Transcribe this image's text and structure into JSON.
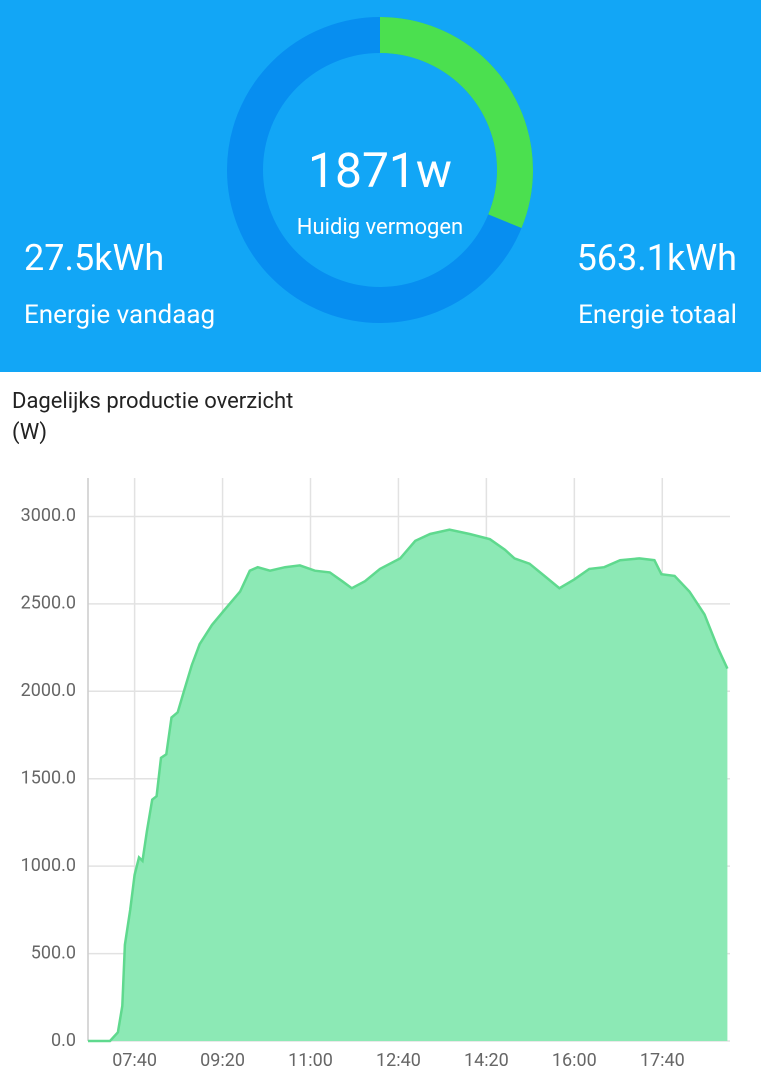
{
  "header": {
    "current_power": {
      "value": 1871,
      "unit": "w",
      "label": "Huidig vermogen",
      "gauge_max": 6000
    },
    "energy_today": {
      "value": 27.5,
      "unit": "kWh",
      "label": "Energie vandaag"
    },
    "energy_total": {
      "value": 563.1,
      "unit": "kWh",
      "label": "Energie totaal"
    }
  },
  "chart_data": {
    "type": "area",
    "title": "Dagelijks productie overzicht",
    "subtitle": "(W)",
    "color": "#8ce9b5",
    "line_color": "#5fd98e",
    "grid": true,
    "x": [
      "06:47",
      "07:12",
      "07:21",
      "07:26",
      "07:29",
      "07:35",
      "07:40",
      "07:45",
      "07:49",
      "07:54",
      "08:00",
      "08:05",
      "08:10",
      "08:16",
      "08:22",
      "08:29",
      "08:36",
      "08:45",
      "08:54",
      "09:08",
      "09:23",
      "09:40",
      "09:51",
      "10:00",
      "10:14",
      "10:31",
      "10:48",
      "11:05",
      "11:22",
      "11:36",
      "11:47",
      "12:02",
      "12:19",
      "12:42",
      "12:59",
      "13:16",
      "13:38",
      "14:01",
      "14:24",
      "14:41",
      "14:52",
      "15:09",
      "15:26",
      "15:43",
      "16:00",
      "16:17",
      "16:34",
      "16:52",
      "17:14",
      "17:31",
      "17:39",
      "17:54",
      "18:11",
      "18:28",
      "18:43",
      "18:54"
    ],
    "values": [
      0,
      0,
      50,
      200,
      550,
      750,
      950,
      1050,
      1030,
      1200,
      1380,
      1400,
      1620,
      1640,
      1850,
      1880,
      2000,
      2150,
      2270,
      2380,
      2470,
      2570,
      2690,
      2710,
      2690,
      2710,
      2720,
      2690,
      2680,
      2630,
      2590,
      2630,
      2700,
      2760,
      2860,
      2900,
      2925,
      2900,
      2870,
      2810,
      2760,
      2730,
      2660,
      2590,
      2640,
      2700,
      2710,
      2750,
      2760,
      2750,
      2670,
      2660,
      2570,
      2440,
      2250,
      2130
    ],
    "xlim": [
      "06:47",
      "18:57"
    ],
    "xticks": [
      "07:40",
      "09:20",
      "11:00",
      "12:40",
      "14:20",
      "16:00",
      "17:40"
    ],
    "ylim": [
      0,
      3220
    ],
    "yticks": [
      {
        "value": 0,
        "label": "0.0"
      },
      {
        "value": 500,
        "label": "500.0"
      },
      {
        "value": 1000,
        "label": "1000.0"
      },
      {
        "value": 1500,
        "label": "1500.0"
      },
      {
        "value": 2000,
        "label": "2000.0"
      },
      {
        "value": 2500,
        "label": "2500.0"
      },
      {
        "value": 3000,
        "label": "3000.0"
      }
    ]
  }
}
